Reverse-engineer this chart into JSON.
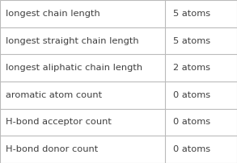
{
  "rows": [
    [
      "longest chain length",
      "5 atoms"
    ],
    [
      "longest straight chain length",
      "5 atoms"
    ],
    [
      "longest aliphatic chain length",
      "2 atoms"
    ],
    [
      "aromatic atom count",
      "0 atoms"
    ],
    [
      "H-bond acceptor count",
      "0 atoms"
    ],
    [
      "H-bond donor count",
      "0 atoms"
    ]
  ],
  "col_split": 0.695,
  "background_color": "#ffffff",
  "border_color": "#bbbbbb",
  "text_color": "#404040",
  "font_size": 8.2,
  "fig_width": 2.93,
  "fig_height": 2.02,
  "dpi": 100
}
